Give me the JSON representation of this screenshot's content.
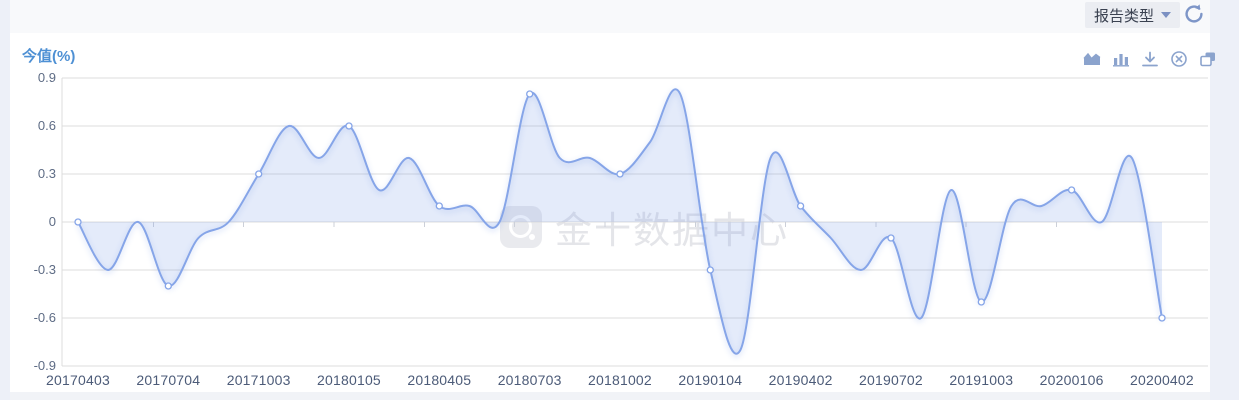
{
  "page": {
    "header": {
      "report_type_button": "报告类型",
      "refresh_icon": "refresh-icon"
    },
    "chart_header": {
      "title": "今值(%)"
    },
    "toolbar_icons": [
      "area-chart-icon",
      "bar-chart-icon",
      "download-icon",
      "close-icon",
      "copy-icon"
    ],
    "watermark": {
      "logo_icon": "jin10-logo-icon",
      "text": "金十数据中心"
    }
  },
  "chart_data": {
    "type": "area",
    "title": "今值(%)",
    "x_labels": [
      "20170403",
      "20170704",
      "20171003",
      "20180105",
      "20180405",
      "20180703",
      "20181002",
      "20190104",
      "20190402",
      "20190702",
      "20191003",
      "20200106",
      "20200402"
    ],
    "label_interval": 3,
    "values": [
      0,
      -0.3,
      0,
      -0.4,
      -0.1,
      0,
      0.3,
      0.6,
      0.4,
      0.6,
      0.2,
      0.4,
      0.1,
      0.1,
      0,
      0.8,
      0.4,
      0.4,
      0.3,
      0.5,
      0.8,
      -0.3,
      -0.8,
      0.4,
      0.1,
      -0.1,
      -0.3,
      -0.1,
      -0.6,
      0.2,
      -0.5,
      0.1,
      0.1,
      0.2,
      0,
      0.4,
      -0.6
    ],
    "ylim": [
      -0.9,
      0.9
    ],
    "y_ticks": [
      0.9,
      0.6,
      0.3,
      0,
      -0.3,
      -0.6,
      -0.9
    ],
    "xlabel": "",
    "ylabel": "",
    "grid": true,
    "legend": "none",
    "smooth": true,
    "markers_at_labeled_points": true,
    "colors": {
      "line": "#86a5e8",
      "area": "rgba(134,165,232,0.22)",
      "grid": "#dcdcdc",
      "tick": "#ccd0d9",
      "title": "#4e90d4",
      "axis_label": "#4c5b78",
      "icon": "#8ba3cd",
      "header_icon": "#7e96c8"
    }
  }
}
